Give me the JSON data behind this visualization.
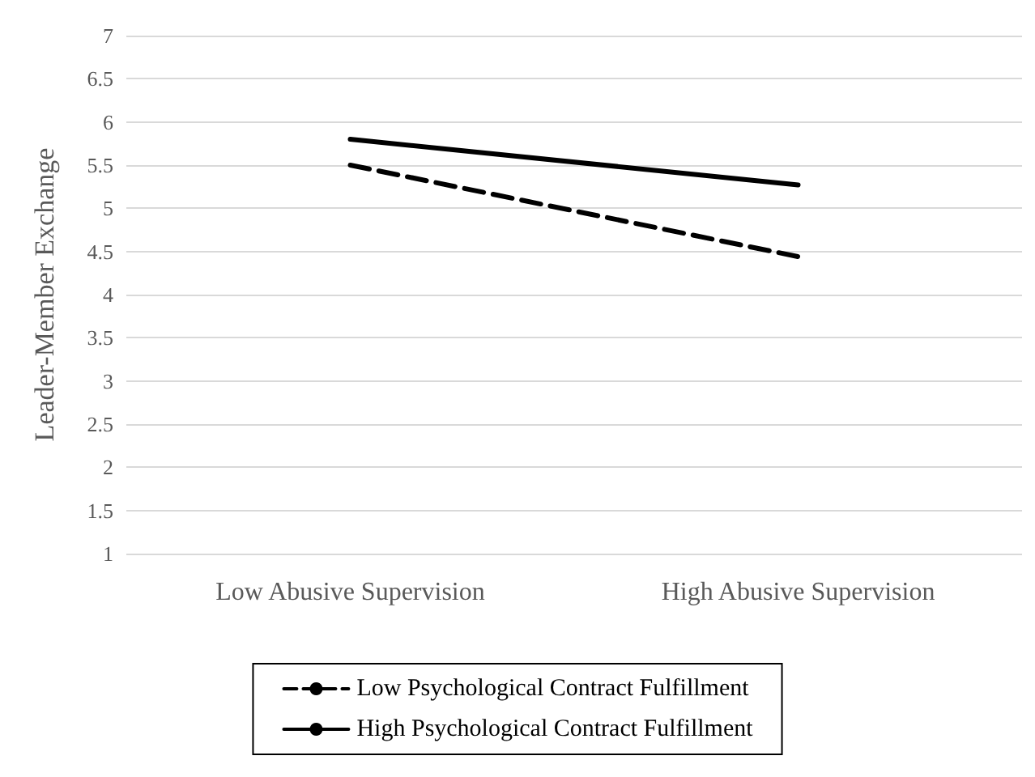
{
  "chart_data": {
    "type": "line",
    "ylabel": "Leader-Member Exchange",
    "categories": [
      "Low Abusive Supervision",
      "High Abusive Supervision"
    ],
    "series": [
      {
        "name": "Low Psychological Contract Fulfillment",
        "color": "#000000",
        "values": [
          5.5,
          4.44
        ],
        "line_style": "dashed"
      },
      {
        "name": "High Psychological Contract Fulfillment",
        "color": "#000000",
        "values": [
          5.8,
          5.27
        ],
        "line_style": "solid"
      }
    ],
    "ylim": [
      1,
      7
    ],
    "yticks": [
      1,
      1.5,
      2,
      2.5,
      3,
      3.5,
      4,
      4.5,
      5,
      5.5,
      6,
      6.5,
      7
    ],
    "grid": "y",
    "legend": "bottom",
    "marker": "none"
  }
}
